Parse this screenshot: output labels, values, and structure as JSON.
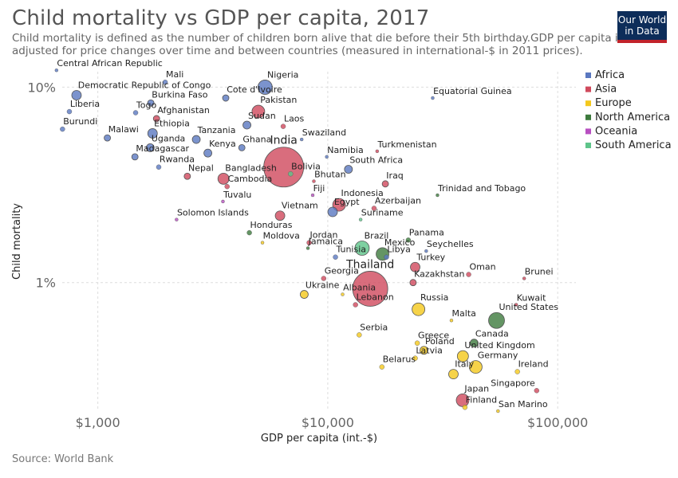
{
  "header": {
    "title": "Child mortality vs GDP per capita, 2017",
    "subtitle": "Child mortality is defined as the number of children born alive that die before their 5th birthday.GDP per capita is\nadjusted for price changes over time and between countries (measured in international-$ in 2011 prices).",
    "logo_line1": "Our World",
    "logo_line2": "in Data"
  },
  "footer": {
    "source": "Source: World Bank"
  },
  "colors": {
    "Africa": "#5a78c0",
    "Asia": "#d0495c",
    "Europe": "#f4c81c",
    "North America": "#3d7a3d",
    "Oceania": "#b84fc1",
    "South America": "#5ec48a"
  },
  "chart_data": {
    "type": "scatter",
    "xlabel": "GDP per capita (int.-$)",
    "ylabel": "Child mortality",
    "x_scale": "log",
    "y_scale": "log",
    "xlim": [
      700,
      120000
    ],
    "ylim": [
      0.22,
      12
    ],
    "x_ticks": [
      1000,
      10000,
      100000
    ],
    "x_tick_labels": [
      "$1,000",
      "$10,000",
      "$100,000"
    ],
    "y_ticks": [
      1,
      10
    ],
    "y_tick_labels": [
      "1%",
      "10%"
    ],
    "legend": [
      "Africa",
      "Asia",
      "Europe",
      "North America",
      "Oceania",
      "South America"
    ],
    "legend_position": "right",
    "grid": true,
    "points": [
      {
        "name": "Central African Republic",
        "x": 661,
        "y": 12.2,
        "region": "Africa",
        "size": 2
      },
      {
        "name": "Mali",
        "x": 1963,
        "y": 10.6,
        "region": "Africa",
        "size": 3
      },
      {
        "name": "Nigeria",
        "x": 5338,
        "y": 10.0,
        "region": "Africa",
        "size": 9
      },
      {
        "name": "Democratic Republic of Congo",
        "x": 808,
        "y": 9.1,
        "region": "Africa",
        "size": 6
      },
      {
        "name": "Equatorial Guinea",
        "x": 28600,
        "y": 8.8,
        "region": "Africa",
        "size": 2
      },
      {
        "name": "Cote d'Ivoire",
        "x": 3600,
        "y": 8.8,
        "region": "Africa",
        "size": 4
      },
      {
        "name": "Burkina Faso",
        "x": 1700,
        "y": 8.3,
        "region": "Africa",
        "size": 4
      },
      {
        "name": "Pakistan",
        "x": 4990,
        "y": 7.5,
        "region": "Asia",
        "size": 8
      },
      {
        "name": "Liberia",
        "x": 752,
        "y": 7.5,
        "region": "Africa",
        "size": 3
      },
      {
        "name": "Togo",
        "x": 1460,
        "y": 7.4,
        "region": "Africa",
        "size": 3
      },
      {
        "name": "Afghanistan",
        "x": 1800,
        "y": 6.9,
        "region": "Asia",
        "size": 4
      },
      {
        "name": "Sudan",
        "x": 4450,
        "y": 6.4,
        "region": "Africa",
        "size": 5
      },
      {
        "name": "Laos",
        "x": 6400,
        "y": 6.3,
        "region": "Asia",
        "size": 3
      },
      {
        "name": "Burundi",
        "x": 702,
        "y": 6.1,
        "region": "Africa",
        "size": 3
      },
      {
        "name": "Ethiopia",
        "x": 1730,
        "y": 5.8,
        "region": "Africa",
        "size": 6
      },
      {
        "name": "Malawi",
        "x": 1100,
        "y": 5.5,
        "region": "Africa",
        "size": 4
      },
      {
        "name": "Tanzania",
        "x": 2680,
        "y": 5.4,
        "region": "Africa",
        "size": 5
      },
      {
        "name": "Swaziland",
        "x": 7700,
        "y": 5.4,
        "region": "Africa",
        "size": 2
      },
      {
        "name": "Uganda",
        "x": 1690,
        "y": 4.9,
        "region": "Africa",
        "size": 5
      },
      {
        "name": "Ghana",
        "x": 4230,
        "y": 4.9,
        "region": "Africa",
        "size": 4
      },
      {
        "name": "India",
        "x": 6430,
        "y": 3.9,
        "region": "Asia",
        "size": 25
      },
      {
        "name": "Turkmenistan",
        "x": 16400,
        "y": 4.7,
        "region": "Asia",
        "size": 2
      },
      {
        "name": "Kenya",
        "x": 3010,
        "y": 4.6,
        "region": "Africa",
        "size": 5
      },
      {
        "name": "Madagascar",
        "x": 1450,
        "y": 4.4,
        "region": "Africa",
        "size": 4
      },
      {
        "name": "Namibia",
        "x": 9900,
        "y": 4.4,
        "region": "Africa",
        "size": 2
      },
      {
        "name": "Rwanda",
        "x": 1840,
        "y": 3.9,
        "region": "Africa",
        "size": 3
      },
      {
        "name": "South Africa",
        "x": 12300,
        "y": 3.8,
        "region": "Africa",
        "size": 5
      },
      {
        "name": "Nepal",
        "x": 2450,
        "y": 3.5,
        "region": "Asia",
        "size": 4
      },
      {
        "name": "Bangladesh",
        "x": 3520,
        "y": 3.4,
        "region": "Asia",
        "size": 7
      },
      {
        "name": "Bolivia",
        "x": 6890,
        "y": 3.6,
        "region": "South America",
        "size": 3
      },
      {
        "name": "Bhutan",
        "x": 8700,
        "y": 3.3,
        "region": "Asia",
        "size": 2
      },
      {
        "name": "Iraq",
        "x": 17800,
        "y": 3.2,
        "region": "Asia",
        "size": 4
      },
      {
        "name": "Cambodia",
        "x": 3650,
        "y": 3.1,
        "region": "Asia",
        "size": 3
      },
      {
        "name": "Indonesia",
        "x": 11200,
        "y": 2.5,
        "region": "Asia",
        "size": 8
      },
      {
        "name": "Trinidad and Tobago",
        "x": 30000,
        "y": 2.8,
        "region": "North America",
        "size": 2
      },
      {
        "name": "Fiji",
        "x": 8600,
        "y": 2.8,
        "region": "Oceania",
        "size": 2
      },
      {
        "name": "Tuvalu",
        "x": 3500,
        "y": 2.6,
        "region": "Oceania",
        "size": 2
      },
      {
        "name": "Egypt",
        "x": 10500,
        "y": 2.3,
        "region": "Africa",
        "size": 6
      },
      {
        "name": "Azerbaijan",
        "x": 15900,
        "y": 2.4,
        "region": "Asia",
        "size": 3
      },
      {
        "name": "Vietnam",
        "x": 6200,
        "y": 2.2,
        "region": "Asia",
        "size": 6
      },
      {
        "name": "Solomon Islands",
        "x": 2200,
        "y": 2.1,
        "region": "Oceania",
        "size": 2
      },
      {
        "name": "Suriname",
        "x": 13900,
        "y": 2.1,
        "region": "South America",
        "size": 2
      },
      {
        "name": "Honduras",
        "x": 4560,
        "y": 1.8,
        "region": "North America",
        "size": 3
      },
      {
        "name": "Jordan",
        "x": 8300,
        "y": 1.6,
        "region": "Asia",
        "size": 3
      },
      {
        "name": "Panama",
        "x": 22400,
        "y": 1.65,
        "region": "North America",
        "size": 3
      },
      {
        "name": "Moldova",
        "x": 5200,
        "y": 1.6,
        "region": "Europe",
        "size": 2
      },
      {
        "name": "Jamaica",
        "x": 8200,
        "y": 1.5,
        "region": "North America",
        "size": 2
      },
      {
        "name": "Brazil",
        "x": 14100,
        "y": 1.5,
        "region": "South America",
        "size": 9
      },
      {
        "name": "Seychelles",
        "x": 26800,
        "y": 1.45,
        "region": "Africa",
        "size": 2
      },
      {
        "name": "Mexico",
        "x": 17300,
        "y": 1.4,
        "region": "North America",
        "size": 8
      },
      {
        "name": "Tunisia",
        "x": 10800,
        "y": 1.35,
        "region": "Africa",
        "size": 3
      },
      {
        "name": "Libya",
        "x": 18000,
        "y": 1.35,
        "region": "Africa",
        "size": 3
      },
      {
        "name": "Turkey",
        "x": 24000,
        "y": 1.2,
        "region": "Asia",
        "size": 6
      },
      {
        "name": "Oman",
        "x": 41000,
        "y": 1.1,
        "region": "Asia",
        "size": 3
      },
      {
        "name": "Brunei",
        "x": 71500,
        "y": 1.05,
        "region": "Asia",
        "size": 2
      },
      {
        "name": "Georgia",
        "x": 9600,
        "y": 1.05,
        "region": "Asia",
        "size": 3
      },
      {
        "name": "Kazakhstan",
        "x": 23500,
        "y": 1.0,
        "region": "Asia",
        "size": 4
      },
      {
        "name": "Thailand",
        "x": 15300,
        "y": 0.93,
        "region": "Asia",
        "size": 22
      },
      {
        "name": "Ukraine",
        "x": 7900,
        "y": 0.87,
        "region": "Europe",
        "size": 5
      },
      {
        "name": "Albania",
        "x": 11600,
        "y": 0.87,
        "region": "Europe",
        "size": 2
      },
      {
        "name": "Lebanon",
        "x": 13200,
        "y": 0.77,
        "region": "Asia",
        "size": 3
      },
      {
        "name": "Kuwait",
        "x": 66000,
        "y": 0.77,
        "region": "Asia",
        "size": 2
      },
      {
        "name": "Russia",
        "x": 24800,
        "y": 0.73,
        "region": "Europe",
        "size": 8
      },
      {
        "name": "United States",
        "x": 54200,
        "y": 0.64,
        "region": "North America",
        "size": 10
      },
      {
        "name": "Malta",
        "x": 34500,
        "y": 0.64,
        "region": "Europe",
        "size": 2
      },
      {
        "name": "Serbia",
        "x": 13700,
        "y": 0.54,
        "region": "Europe",
        "size": 3
      },
      {
        "name": "Greece",
        "x": 24500,
        "y": 0.49,
        "region": "Europe",
        "size": 3
      },
      {
        "name": "Canada",
        "x": 43300,
        "y": 0.49,
        "region": "North America",
        "size": 5
      },
      {
        "name": "Poland",
        "x": 26200,
        "y": 0.45,
        "region": "Europe",
        "size": 5
      },
      {
        "name": "United Kingdom",
        "x": 38700,
        "y": 0.42,
        "region": "Europe",
        "size": 7
      },
      {
        "name": "Latvia",
        "x": 24000,
        "y": 0.41,
        "region": "Europe",
        "size": 3
      },
      {
        "name": "Germany",
        "x": 44000,
        "y": 0.37,
        "region": "Europe",
        "size": 8
      },
      {
        "name": "Ireland",
        "x": 66800,
        "y": 0.35,
        "region": "Europe",
        "size": 3
      },
      {
        "name": "Belarus",
        "x": 17200,
        "y": 0.37,
        "region": "Europe",
        "size": 3
      },
      {
        "name": "Italy",
        "x": 35200,
        "y": 0.34,
        "region": "Europe",
        "size": 6
      },
      {
        "name": "Singapore",
        "x": 81000,
        "y": 0.28,
        "region": "Asia",
        "size": 3
      },
      {
        "name": "Japan",
        "x": 38600,
        "y": 0.25,
        "region": "Asia",
        "size": 8
      },
      {
        "name": "Finland",
        "x": 39500,
        "y": 0.23,
        "region": "Europe",
        "size": 3
      },
      {
        "name": "San Marino",
        "x": 55000,
        "y": 0.22,
        "region": "Europe",
        "size": 2
      }
    ]
  }
}
